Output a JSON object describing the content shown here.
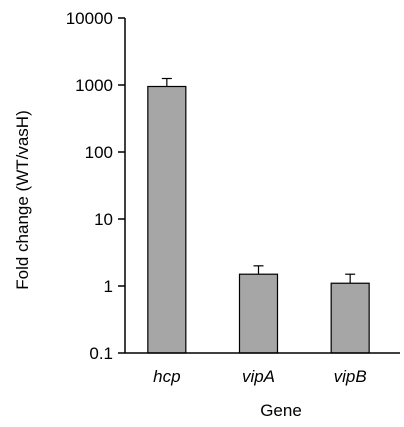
{
  "chart_data": {
    "type": "bar",
    "title": "",
    "xlabel": "Gene",
    "ylabel": "Fold change (WT/vasH)",
    "yscale": "log",
    "ylim": [
      0.1,
      10000
    ],
    "yticks": [
      0.1,
      1,
      10,
      100,
      1000,
      10000
    ],
    "ytick_labels": [
      "0.1",
      "1",
      "10",
      "100",
      "1000",
      "10000"
    ],
    "categories": [
      "hcp",
      "vipA",
      "vipB"
    ],
    "values": [
      950,
      1.5,
      1.1
    ],
    "errors": [
      300,
      0.5,
      0.4
    ],
    "grid": false,
    "legend": "none",
    "bar_color": "#a6a6a6",
    "edge_color": "#000000"
  }
}
